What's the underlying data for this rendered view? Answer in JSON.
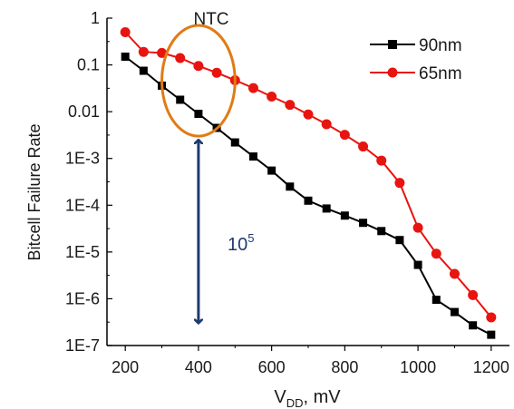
{
  "chart_data": {
    "type": "line",
    "title": "",
    "xlabel": "V",
    "xlabel_sub": "DD",
    "xlabel_suffix": ", mV",
    "ylabel": "Bitcell Failure Rate",
    "y_scale": "log",
    "xlim": [
      150,
      1250
    ],
    "ylim": [
      1e-07,
      1
    ],
    "x_ticks": [
      200,
      400,
      600,
      800,
      1000,
      1200
    ],
    "x_tick_labels": [
      "200",
      "400",
      "600",
      "800",
      "1000",
      "1200"
    ],
    "y_ticks": [
      1,
      0.1,
      0.01,
      0.001,
      0.0001,
      1e-05,
      1e-06,
      1e-07
    ],
    "y_tick_labels": [
      "1",
      "0.1",
      "0.01",
      "1E-3",
      "1E-4",
      "1E-5",
      "1E-6",
      "1E-7"
    ],
    "legend_position": "top-right",
    "grid": false,
    "series": [
      {
        "name": "90nm",
        "color": "#000000",
        "marker": "square",
        "x": [
          200,
          250,
          300,
          350,
          400,
          450,
          500,
          550,
          600,
          650,
          700,
          750,
          800,
          850,
          900,
          950,
          1000,
          1050,
          1100,
          1150,
          1200
        ],
        "y": [
          0.15,
          0.075,
          0.036,
          0.018,
          0.009,
          0.0045,
          0.0022,
          0.0011,
          0.00055,
          0.00025,
          0.000125,
          8.5e-05,
          6e-05,
          4.2e-05,
          2.8e-05,
          1.8e-05,
          5.3e-06,
          9.5e-07,
          5.2e-07,
          2.7e-07,
          1.7e-07
        ]
      },
      {
        "name": "65nm",
        "color": "#e8140f",
        "marker": "circle",
        "x": [
          200,
          250,
          300,
          350,
          400,
          450,
          500,
          550,
          600,
          650,
          700,
          750,
          800,
          850,
          900,
          950,
          1000,
          1050,
          1100,
          1150,
          1200
        ],
        "y": [
          0.5,
          0.19,
          0.18,
          0.14,
          0.095,
          0.068,
          0.047,
          0.032,
          0.021,
          0.014,
          0.0087,
          0.0054,
          0.0032,
          0.0018,
          0.0009,
          0.0003,
          3.3e-05,
          9.2e-06,
          3.4e-06,
          1.2e-06,
          4e-07
        ]
      }
    ],
    "annotations": [
      {
        "name": "ntc-label",
        "text": "NTC",
        "color": "#1f3a6e"
      },
      {
        "name": "gap-label",
        "base": "10",
        "exponent": "5",
        "color": "#1f3a6e"
      }
    ],
    "highlight": {
      "name": "ntc-region",
      "color": "#e07b14",
      "x_range": [
        300,
        500
      ],
      "y_range": [
        0.003,
        0.7
      ]
    },
    "arrow": {
      "name": "gap-arrow",
      "color": "#1f3a6e",
      "x": 400,
      "y_from": 0.0025,
      "y_to": 3e-07
    }
  }
}
